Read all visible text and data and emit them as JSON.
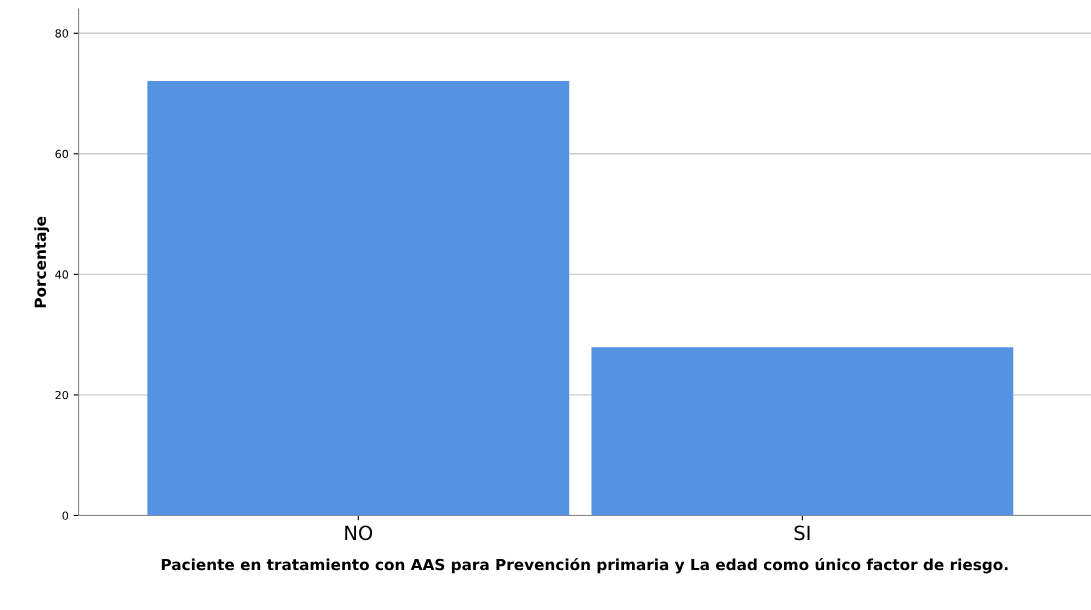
{
  "chart_data": {
    "type": "bar",
    "xlabel": "Paciente en tratamiento con AAS para Prevención primaria y La edad como único factor de riesgo.",
    "ylabel": "Porcentaje",
    "categories": [
      "NO",
      "SI"
    ],
    "values": [
      72.1,
      27.9
    ],
    "color": "#5593e2",
    "ylim": [
      0,
      84
    ],
    "yticks": [
      0,
      20,
      40,
      60,
      80
    ],
    "grid": "y"
  }
}
